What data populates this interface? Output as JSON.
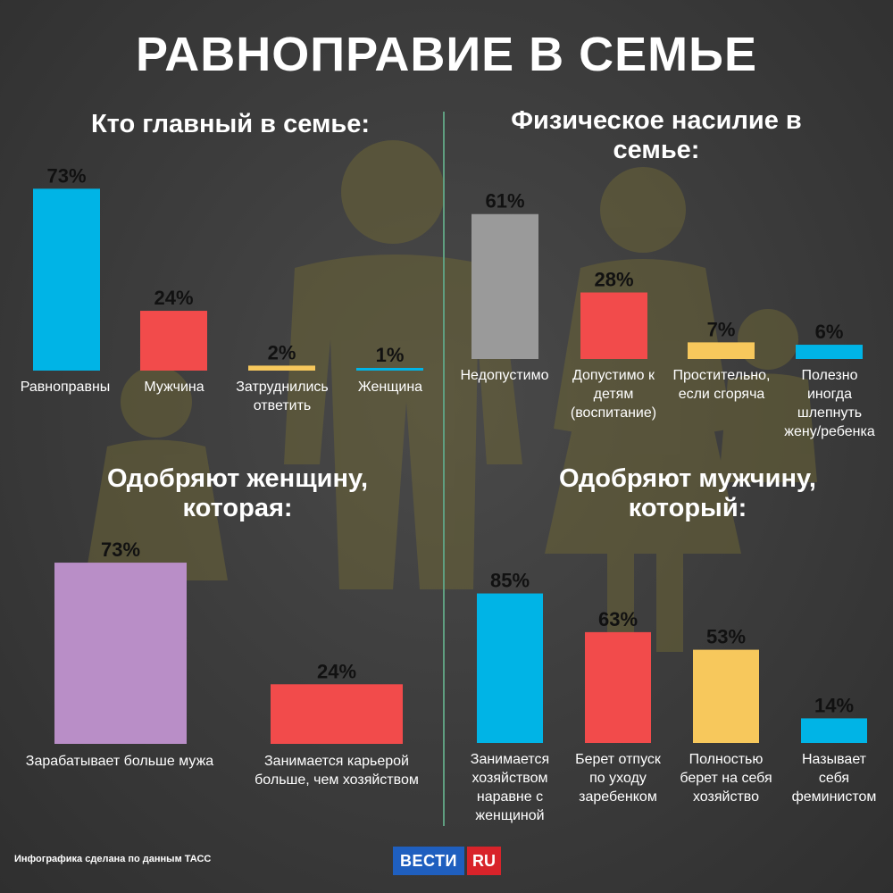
{
  "title": "РАВНОПРАВИЕ В СЕМЬЕ",
  "footer": {
    "note": "Инфографика сделана по данным ТАСС",
    "logo_left": "ВЕСТИ",
    "logo_right": "RU"
  },
  "chart_data": [
    {
      "type": "bar",
      "title": [
        "Кто главный в семье:"
      ],
      "categories": [
        [
          "Равноправны"
        ],
        [
          "Мужчина"
        ],
        [
          "Затруднились",
          "ответить"
        ],
        [
          "Женщина"
        ]
      ],
      "values": [
        73,
        24,
        2,
        1
      ],
      "value_labels": [
        "73%",
        "24%",
        "2%",
        "1%"
      ],
      "colors": [
        "#00b4e6",
        "#f24b4b",
        "#f7c85c",
        "#00b4e6"
      ]
    },
    {
      "type": "bar",
      "title": [
        "Физическое насилие в",
        "семье:"
      ],
      "categories": [
        [
          "Недопустимо"
        ],
        [
          "Допустимо к",
          "детям",
          "(воспитание)"
        ],
        [
          "Простительно,",
          "если сгоряча"
        ],
        [
          "Полезно",
          "иногда",
          "шлепнуть",
          "жену/ребенка"
        ]
      ],
      "values": [
        61,
        28,
        7,
        6
      ],
      "value_labels": [
        "61%",
        "28%",
        "7%",
        "6%"
      ],
      "colors": [
        "#9a9a9a",
        "#f24b4b",
        "#f7c85c",
        "#00b4e6"
      ]
    },
    {
      "type": "bar",
      "title": [
        "Одобряют женщину,",
        "которая:"
      ],
      "categories": [
        [
          "Зарабатывает больше мужа"
        ],
        [
          "Занимается карьерой",
          "больше, чем хозяйством"
        ]
      ],
      "values": [
        73,
        24
      ],
      "value_labels": [
        "73%",
        "24%"
      ],
      "colors": [
        "#b98ec7",
        "#f24b4b"
      ]
    },
    {
      "type": "bar",
      "title": [
        "Одобряют мужчину,",
        "который:"
      ],
      "categories": [
        [
          "Занимается",
          "хозяйством",
          "наравне с",
          "женщиной"
        ],
        [
          "Берет отпуск",
          "по уходу",
          "заребенком"
        ],
        [
          "Полностью",
          "берет на себя",
          "хозяйство"
        ],
        [
          "Называет",
          "себя",
          "феминистом"
        ]
      ],
      "values": [
        85,
        63,
        53,
        14
      ],
      "value_labels": [
        "85%",
        "63%",
        "53%",
        "14%"
      ],
      "colors": [
        "#00b4e6",
        "#f24b4b",
        "#f7c85c",
        "#00b4e6"
      ]
    }
  ]
}
